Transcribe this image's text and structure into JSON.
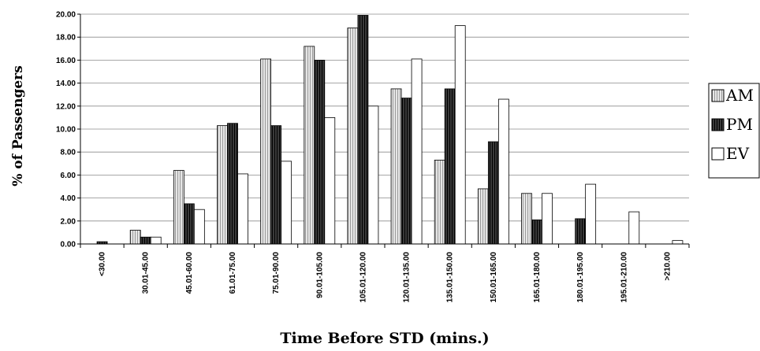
{
  "chart_data": {
    "type": "bar",
    "title": "",
    "xlabel": "Time Before STD (mins.)",
    "ylabel": "% of Passengers",
    "ylim": [
      0,
      20
    ],
    "yticks": [
      "0.00",
      "2.00",
      "4.00",
      "6.00",
      "8.00",
      "10.00",
      "12.00",
      "14.00",
      "16.00",
      "18.00",
      "20.00"
    ],
    "grid": true,
    "legend": "right",
    "categories": [
      "<30.00",
      "30.01-45.00",
      "45.01-60.00",
      "61.01-75.00",
      "75.01-90.00",
      "90.01-105.00",
      "105.01-120.00",
      "120.01-135.00",
      "135.01-150.00",
      "150.01-165.00",
      "165.01-180.00",
      "180.01-195.00",
      "195.01-210.00",
      ">210.00"
    ],
    "series": [
      {
        "name": "AM",
        "fill": "#d0d0d0",
        "values": [
          0,
          1.2,
          6.4,
          10.3,
          16.1,
          17.2,
          18.8,
          13.5,
          7.3,
          4.8,
          4.4,
          0,
          0,
          0
        ]
      },
      {
        "name": "PM",
        "fill": "#333333",
        "values": [
          0.2,
          0.6,
          3.5,
          10.5,
          10.3,
          16.0,
          19.9,
          12.7,
          13.5,
          8.9,
          2.1,
          2.2,
          0,
          0
        ]
      },
      {
        "name": "EV",
        "fill": "#ffffff",
        "values": [
          0,
          0.6,
          3.0,
          6.1,
          7.2,
          11.0,
          12.0,
          16.1,
          19.0,
          12.6,
          4.4,
          5.2,
          2.8,
          0.3
        ]
      }
    ]
  }
}
